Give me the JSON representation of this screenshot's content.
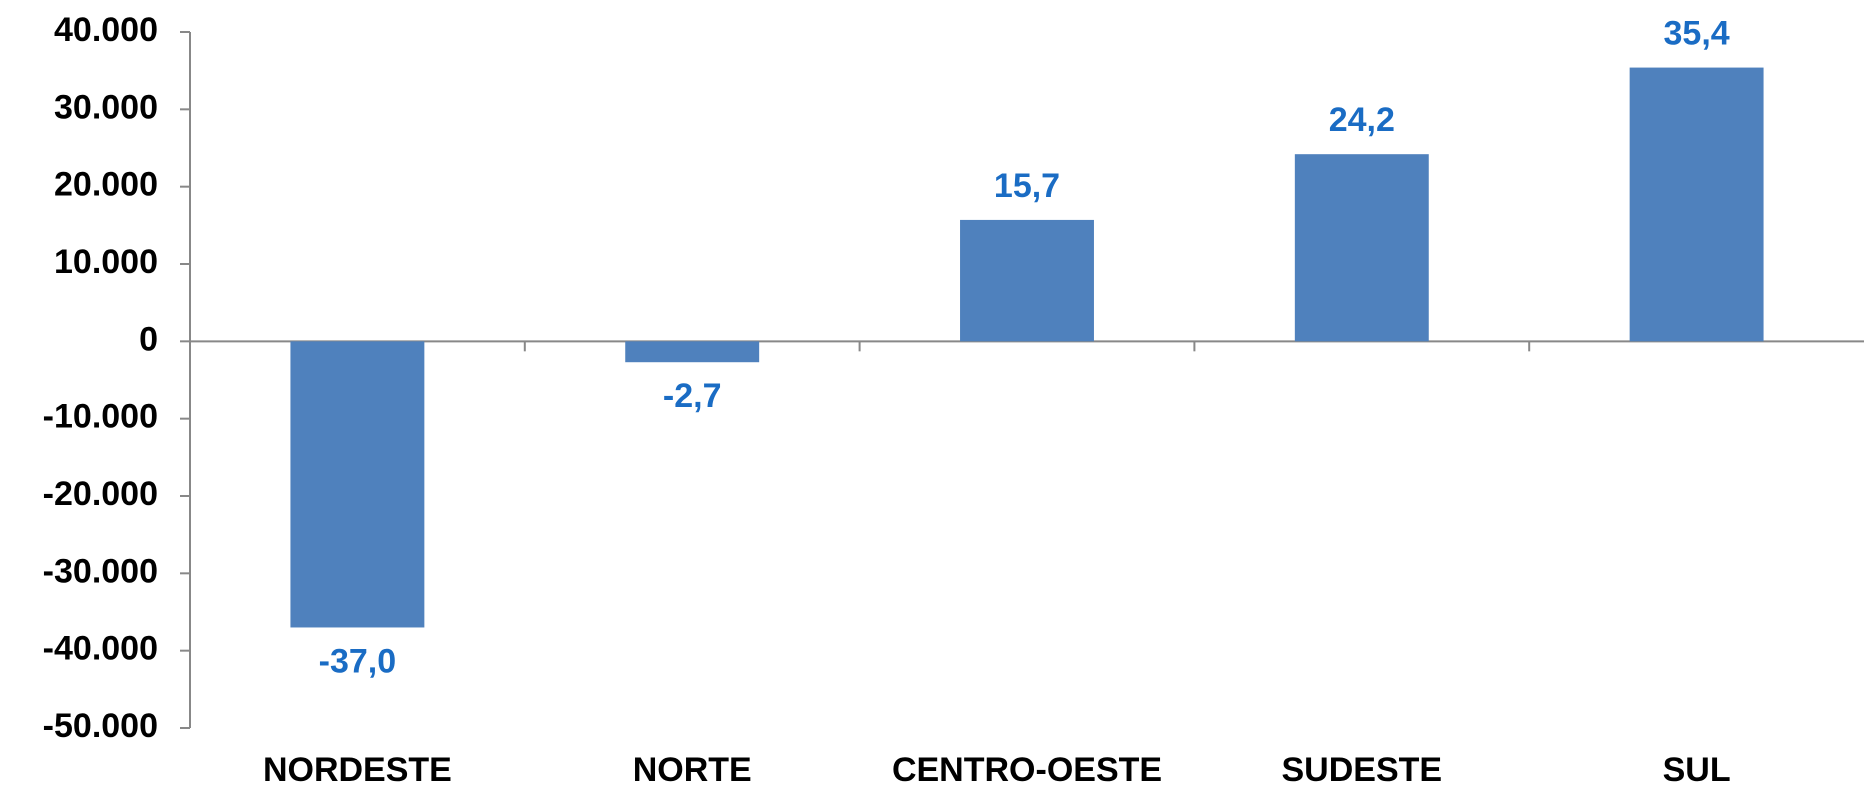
{
  "chart_data": {
    "type": "bar",
    "categories": [
      "NORDESTE",
      "NORTE",
      "CENTRO-OESTE",
      "SUDESTE",
      "SUL"
    ],
    "values": [
      -37000,
      -2700,
      15700,
      24200,
      35400
    ],
    "value_labels": [
      "-37,0",
      "-2,7",
      "15,7",
      "24,2",
      "35,4"
    ],
    "color": "#4f81bd",
    "ylim": [
      -50000,
      40000
    ],
    "yticks": [
      {
        "value": -50000,
        "label": "-50.000"
      },
      {
        "value": -40000,
        "label": "-40.000"
      },
      {
        "value": -30000,
        "label": "-30.000"
      },
      {
        "value": -20000,
        "label": "-20.000"
      },
      {
        "value": -10000,
        "label": "-10.000"
      },
      0,
      {
        "value": 10000,
        "label": "10.000"
      },
      {
        "value": 20000,
        "label": "20.000"
      },
      {
        "value": 30000,
        "label": "30.000"
      },
      {
        "value": 40000,
        "label": "40.000"
      }
    ],
    "grid": false
  }
}
